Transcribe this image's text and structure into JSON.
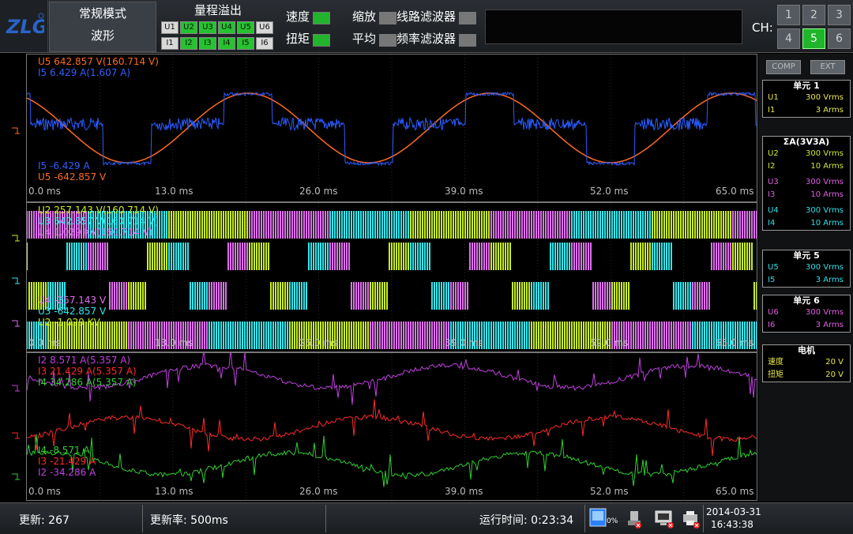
{
  "mode": {
    "line1": "常规模式",
    "line2": "波形"
  },
  "overrange": {
    "title": "量程溢出",
    "u": [
      {
        "label": "U1",
        "on": false
      },
      {
        "label": "U2",
        "on": true
      },
      {
        "label": "U3",
        "on": true
      },
      {
        "label": "U4",
        "on": true
      },
      {
        "label": "U5",
        "on": true
      },
      {
        "label": "U6",
        "on": false
      }
    ],
    "i": [
      {
        "label": "I1",
        "on": false
      },
      {
        "label": "I2",
        "on": true
      },
      {
        "label": "I3",
        "on": true
      },
      {
        "label": "I4",
        "on": true
      },
      {
        "label": "I5",
        "on": true
      },
      {
        "label": "I6",
        "on": false
      }
    ]
  },
  "indicators": {
    "speed": "速度",
    "torque": "扭矩",
    "zoom": "缩放",
    "average": "平均",
    "line_filter": "线路滤波器",
    "freq_filter": "频率滤波器"
  },
  "ch": {
    "label": "CH:",
    "buttons": [
      "1",
      "2",
      "3",
      "4",
      "5",
      "6"
    ],
    "selected": "5"
  },
  "side": {
    "comp": "COMP",
    "ext": "EXT",
    "cards": [
      {
        "title": "单元 1",
        "rows": [
          {
            "a": "U1",
            "b": "300 Vrms",
            "color": "#e8e84a"
          },
          {
            "a": "I1",
            "b": "3 Arms",
            "color": "#e8e84a"
          }
        ]
      },
      {
        "title": "ΣA(3V3A)",
        "rows": [
          {
            "a": "U2",
            "b": "300 Vrms",
            "color": "#cfe830"
          },
          {
            "a": "I2",
            "b": "10 Arms",
            "color": "#cfe830"
          },
          {
            "a": "U3",
            "b": "300 Vrms",
            "color": "#e060e0"
          },
          {
            "a": "I3",
            "b": "10 Arms",
            "color": "#e060e0"
          },
          {
            "a": "U4",
            "b": "300 Vrms",
            "color": "#30e0e8"
          },
          {
            "a": "I4",
            "b": "10 Arms",
            "color": "#30e0e8"
          }
        ]
      },
      {
        "title": "单元 5",
        "rows": [
          {
            "a": "U5",
            "b": "300 Vrms",
            "color": "#30e0e8"
          },
          {
            "a": "I5",
            "b": "3 Arms",
            "color": "#30e0e8"
          }
        ]
      },
      {
        "title": "单元 6",
        "rows": [
          {
            "a": "U6",
            "b": "300 Vrms",
            "color": "#e060e0"
          },
          {
            "a": "I6",
            "b": "3 Arms",
            "color": "#e060e0"
          }
        ]
      },
      {
        "title": "电机",
        "rows": [
          {
            "a": "速度",
            "b": "20 V",
            "color": "#e8e84a"
          },
          {
            "a": "扭矩",
            "b": "20 V",
            "color": "#e8e84a"
          }
        ]
      }
    ]
  },
  "ticks": [
    "0.0 ms",
    "13.0 ms",
    "26.0 ms",
    "39.0 ms",
    "52.0 ms",
    "65.0 ms"
  ],
  "panel1": {
    "top": [
      {
        "text": "U5   642.857 V(160.714 V)",
        "color": "#ff6a20"
      },
      {
        "text": "I5    6.429 A(1.607 A)",
        "color": "#3060ff"
      }
    ],
    "bottom": [
      {
        "text": "I5   -6.429 A",
        "color": "#3060ff"
      },
      {
        "text": "U5   -642.857 V",
        "color": "#ff6a20"
      }
    ]
  },
  "panel2": {
    "top": [
      {
        "text": "U2   257.143 V(160.714 V)",
        "color": "#c8f020"
      },
      {
        "text": "U3   642.857 V(160.714 V)",
        "color": "#30e8f0"
      },
      {
        "text": "U4   1.029 KV(160.714 V)",
        "color": "#e070f0"
      }
    ],
    "bottom": [
      {
        "text": "U4   -257.143 V",
        "color": "#e070f0"
      },
      {
        "text": "U3   -642.857 V",
        "color": "#30e8f0"
      },
      {
        "text": "U2   -1.029 KV",
        "color": "#c8f020"
      }
    ]
  },
  "panel3": {
    "top": [
      {
        "text": "I2   8.571 A(5.357 A)",
        "color": "#c040e0"
      },
      {
        "text": "I3   21.429 A(5.357 A)",
        "color": "#ff2a2a"
      },
      {
        "text": "I4   34.286 A(5.357 A)",
        "color": "#30d030"
      }
    ],
    "bottom": [
      {
        "text": "I4   -8.571 A",
        "color": "#30d030"
      },
      {
        "text": "I3   -21.429 A",
        "color": "#ff2a2a"
      },
      {
        "text": "I2   -34.286 A",
        "color": "#c040e0"
      }
    ]
  },
  "status": {
    "update": "更新: 267",
    "rate": "更新率: 500ms",
    "runtime": "运行时间: 0:23:34",
    "date": "2014-03-31",
    "time": "16:43:38",
    "storage": "0%"
  }
}
